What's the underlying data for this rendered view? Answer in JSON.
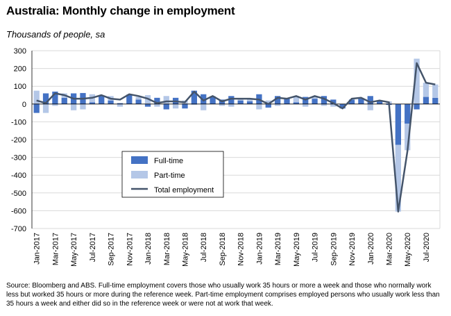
{
  "title": "Australia: Monthly change in employment",
  "subtitle": "Thousands of people, sa",
  "source": "Source: Bloomberg and ABS.  Full-time employment covers those who usually work 35 hours or more a week and those who normally work less but worked 35 hours or  more during the reference week.  Part-time employment comprises employed persons who usually work less than 35 hours a week and either did so in the reference week or were not at work that week.",
  "colors": {
    "full_time": "#4472c4",
    "part_time": "#b4c7e7",
    "total": "#44546a",
    "grid": "#d9d9d9"
  },
  "chart_data": {
    "type": "bar",
    "stacked": true,
    "grid": true,
    "legend_position": "center-left",
    "ylim": [
      -700,
      300
    ],
    "yticks": [
      300,
      200,
      100,
      0,
      -100,
      -200,
      -300,
      -400,
      -500,
      -600,
      -700
    ],
    "categories": [
      "Jan-2017",
      "Feb-2017",
      "Mar-2017",
      "Apr-2017",
      "May-2017",
      "Jun-2017",
      "Jul-2017",
      "Aug-2017",
      "Sep-2017",
      "Oct-2017",
      "Nov-2017",
      "Dec-2017",
      "Jan-2018",
      "Feb-2018",
      "Mar-2018",
      "Apr-2018",
      "May-2018",
      "Jun-2018",
      "Jul-2018",
      "Aug-2018",
      "Sep-2018",
      "Oct-2018",
      "Nov-2018",
      "Dec-2018",
      "Jan-2019",
      "Feb-2019",
      "Mar-2019",
      "Apr-2019",
      "May-2019",
      "Jun-2019",
      "Jul-2019",
      "Aug-2019",
      "Sep-2019",
      "Oct-2019",
      "Nov-2019",
      "Dec-2019",
      "Jan-2020",
      "Feb-2020",
      "Mar-2020",
      "Apr-2020",
      "May-2020",
      "Jun-2020",
      "Jul-2020",
      "Aug-2020"
    ],
    "tick_labels": [
      "Jan-2017",
      "Mar-2017",
      "May-2017",
      "Jul-2017",
      "Sep-2017",
      "Nov-2017",
      "Jan-2018",
      "Mar-2018",
      "May-2018",
      "Jul-2018",
      "Sep-2018",
      "Nov-2018",
      "Jan-2019",
      "Mar-2019",
      "May-2019",
      "Jul-2019",
      "Sep-2019",
      "Nov-2019",
      "Jan-2020",
      "Mar-2020",
      "May-2020",
      "Jul-2020"
    ],
    "series": [
      {
        "name": "Full-time",
        "kind": "bar",
        "values": [
          -50,
          60,
          70,
          35,
          60,
          62,
          10,
          45,
          20,
          5,
          50,
          25,
          -15,
          35,
          -30,
          35,
          -25,
          75,
          55,
          40,
          25,
          45,
          20,
          15,
          55,
          -20,
          45,
          30,
          10,
          40,
          30,
          45,
          25,
          -25,
          25,
          30,
          45,
          20,
          -5,
          -230,
          -110,
          -30,
          40,
          35
        ]
      },
      {
        "name": "Part-time",
        "kind": "bar",
        "values": [
          75,
          -50,
          -10,
          25,
          -35,
          -30,
          45,
          5,
          25,
          -15,
          5,
          15,
          50,
          -15,
          45,
          -25,
          20,
          -5,
          -35,
          5,
          -10,
          -15,
          10,
          15,
          -30,
          20,
          -10,
          0,
          35,
          -15,
          15,
          -10,
          -15,
          0,
          0,
          5,
          -35,
          0,
          15,
          -375,
          -150,
          255,
          80,
          75
        ]
      },
      {
        "name": "Total employment",
        "kind": "line",
        "values": [
          20,
          5,
          60,
          50,
          30,
          30,
          35,
          50,
          30,
          25,
          55,
          45,
          30,
          5,
          15,
          15,
          10,
          70,
          20,
          45,
          15,
          30,
          30,
          30,
          25,
          0,
          35,
          30,
          45,
          25,
          45,
          30,
          5,
          -25,
          30,
          35,
          10,
          20,
          10,
          -605,
          -265,
          230,
          120,
          110
        ]
      }
    ]
  }
}
